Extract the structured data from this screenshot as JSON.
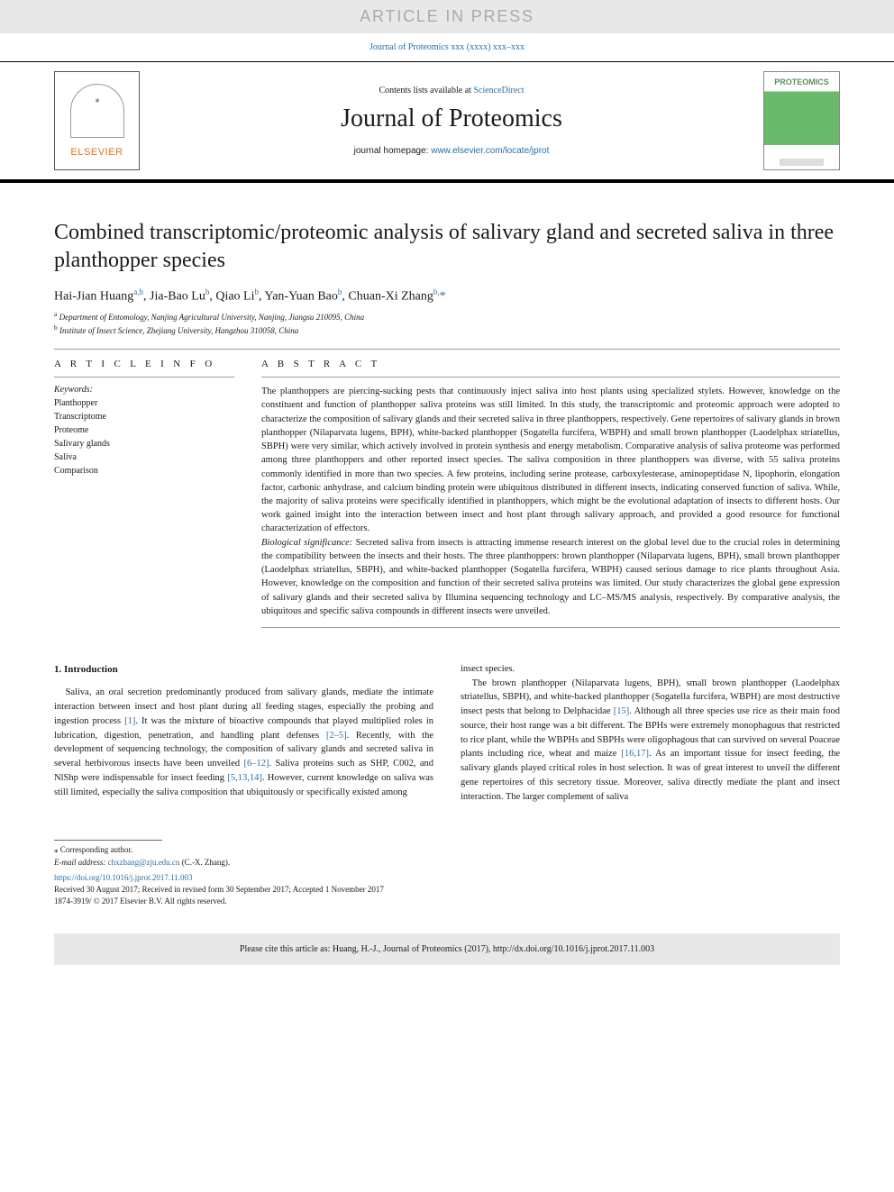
{
  "banner": {
    "text": "ARTICLE IN PRESS"
  },
  "journal_ref": {
    "text": "Journal of Proteomics xxx (xxxx) xxx–xxx"
  },
  "header": {
    "contents_prefix": "Contents lists available at ",
    "contents_link": "ScienceDirect",
    "journal_title": "Journal of Proteomics",
    "homepage_prefix": "journal homepage: ",
    "homepage_url": "www.elsevier.com/locate/jprot",
    "elsevier_brand": "ELSEVIER",
    "cover_title": "PROTEOMICS"
  },
  "article": {
    "title": "Combined transcriptomic/proteomic analysis of salivary gland and secreted saliva in three planthopper species",
    "authors_html": "Hai-Jian Huang<sup>a,b</sup>, Jia-Bao Lu<sup>b</sup>, Qiao Li<sup>b</sup>, Yan-Yuan Bao<sup>b</sup>, Chuan-Xi Zhang<sup>b,</sup><span class='corr'>*</span>",
    "affiliations": [
      {
        "sup": "a",
        "text": "Department of Entomology, Nanjing Agricultural University, Nanjing, Jiangsu 210095, China"
      },
      {
        "sup": "b",
        "text": "Institute of Insect Science, Zhejiang University, Hangzhou 310058, China"
      }
    ]
  },
  "info": {
    "label": "A R T I C L E  I N F O",
    "keywords_label": "Keywords:",
    "keywords": [
      "Planthopper",
      "Transcriptome",
      "Proteome",
      "Salivary glands",
      "Saliva",
      "Comparison"
    ]
  },
  "abstract": {
    "label": "A B S T R A C T",
    "text1": "The planthoppers are piercing-sucking pests that continuously inject saliva into host plants using specialized stylets. However, knowledge on the constituent and function of planthopper saliva proteins was still limited. In this study, the transcriptomic and proteomic approach were adopted to characterize the composition of salivary glands and their secreted saliva in three planthoppers, respectively. Gene repertoires of salivary glands in brown planthopper (Nilaparvata lugens, BPH), white-backed planthopper (Sogatella furcifera, WBPH) and small brown planthopper (Laodelphax striatellus, SBPH) were very similar, which actively involved in protein synthesis and energy metabolism. Comparative analysis of saliva proteome was performed among three planthoppers and other reported insect species. The saliva composition in three planthoppers was diverse, with 55 saliva proteins commonly identified in more than two species. A few proteins, including serine protease, carboxylesterase, aminopeptidase N, lipophorin, elongation factor, carbonic anhydrase, and calcium binding protein were ubiquitous distributed in different insects, indicating conserved function of saliva. While, the majority of saliva proteins were specifically identified in planthoppers, which might be the evolutional adaptation of insects to different hosts. Our work gained insight into the interaction between insect and host plant through salivary approach, and provided a good resource for functional characterization of effectors.",
    "bio_sig_label": "Biological significance:",
    "text2": "Secreted saliva from insects is attracting immense research interest on the global level due to the crucial roles in determining the compatibility between the insects and their hosts. The three planthoppers: brown planthopper (Nilaparvata lugens, BPH), small brown planthopper (Laodelphax striatellus, SBPH), and white-backed planthopper (Sogatella furcifera, WBPH) caused serious damage to rice plants throughout Asia. However, knowledge on the composition and function of their secreted saliva proteins was limited. Our study characterizes the global gene expression of salivary glands and their secreted saliva by Illumina sequencing technology and LC–MS/MS analysis, respectively. By comparative analysis, the ubiquitous and specific saliva compounds in different insects were unveiled."
  },
  "intro": {
    "heading": "1. Introduction",
    "left_para": "Saliva, an oral secretion predominantly produced from salivary glands, mediate the intimate interaction between insect and host plant during all feeding stages, especially the probing and ingestion process [1]. It was the mixture of bioactive compounds that played multiplied roles in lubrication, digestion, penetration, and handling plant defenses [2–5]. Recently, with the development of sequencing technology, the composition of salivary glands and secreted saliva in several herbivorous insects have been unveiled [6–12]. Saliva proteins such as SHP, C002, and NlShp were indispensable for insect feeding [5,13,14]. However, current knowledge on saliva was still limited, especially the saliva composition that ubiquitously or specifically existed among",
    "right_para_top": "insect species.",
    "right_para": "The brown planthopper (Nilaparvata lugens, BPH), small brown planthopper (Laodelphax striatellus, SBPH), and white-backed planthopper (Sogatella furcifera, WBPH) are most destructive insect pests that belong to Delphacidae [15]. Although all three species use rice as their main food source, their host range was a bit different. The BPHs were extremely monophagous that restricted to rice plant, while the WBPHs and SBPHs were oligophagous that can survived on several Poaceae plants including rice, wheat and maize [16,17]. As an important tissue for insect feeding, the salivary glands played critical roles in host selection. It was of great interest to unveil the different gene repertoires of this secretory tissue. Moreover, saliva directly mediate the plant and insect interaction. The larger complement of saliva"
  },
  "footnotes": {
    "corr": "⁎ Corresponding author.",
    "email_label": "E-mail address: ",
    "email": "chxzhang@zju.edu.cn",
    "email_suffix": " (C.-X. Zhang)."
  },
  "footer": {
    "doi": "https://doi.org/10.1016/j.jprot.2017.11.003",
    "received": "Received 30 August 2017; Received in revised form 30 September 2017; Accepted 1 November 2017",
    "copyright": "1874-3919/ © 2017 Elsevier B.V. All rights reserved."
  },
  "cite_box": {
    "text": "Please cite this article as: Huang, H.-J., Journal of Proteomics (2017), http://dx.doi.org/10.1016/j.jprot.2017.11.003"
  },
  "colors": {
    "link": "#2a6fa5",
    "banner_bg": "#e8e8e8",
    "banner_fg": "#aaaaaa",
    "elsevier_orange": "#e9711c"
  }
}
